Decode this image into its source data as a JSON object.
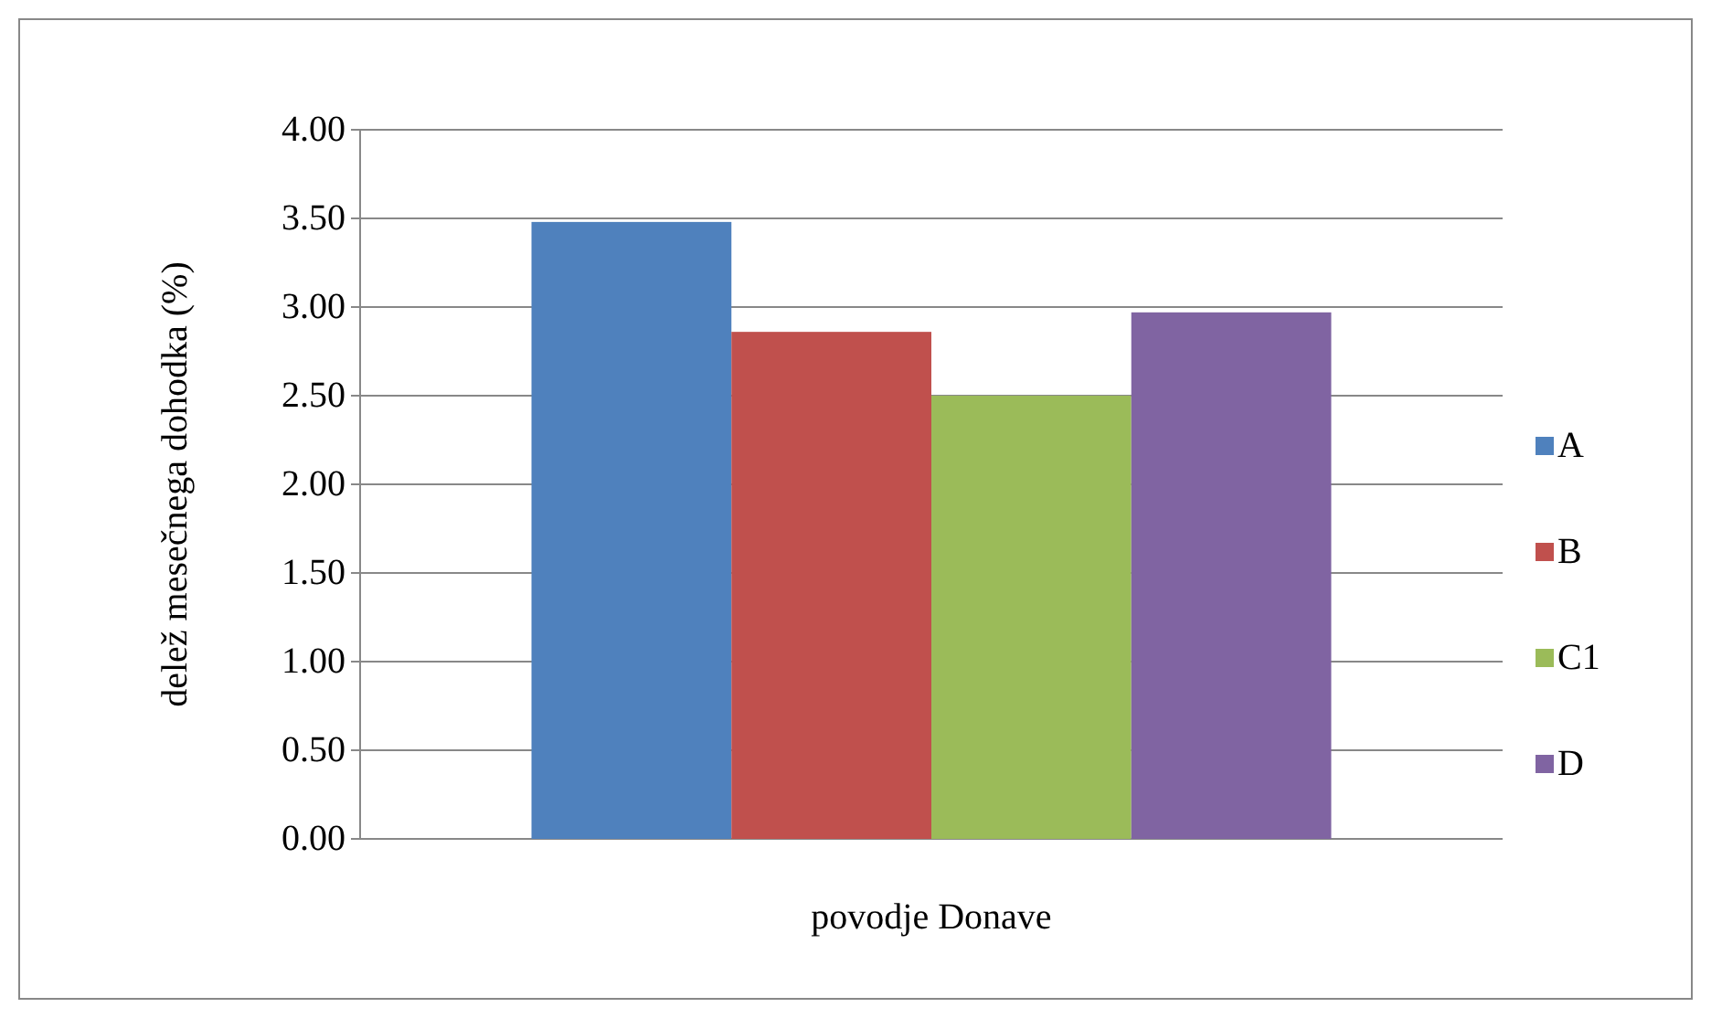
{
  "chart_data": {
    "type": "bar",
    "categories": [
      "povodje Donave"
    ],
    "ylabel": "delež mesečnega dohodka (%)",
    "series": [
      {
        "name": "A",
        "color": "#4f81bd",
        "values": [
          3.48
        ]
      },
      {
        "name": "B",
        "color": "#c0504d",
        "values": [
          2.86
        ]
      },
      {
        "name": "C1",
        "color": "#9bbb59",
        "values": [
          2.5
        ]
      },
      {
        "name": "D",
        "color": "#8064a2",
        "values": [
          2.97
        ]
      }
    ],
    "ylim": [
      0,
      4
    ],
    "yticks": [
      {
        "value": 0,
        "label": "0.00"
      },
      {
        "value": 0.5,
        "label": "0.50"
      },
      {
        "value": 1,
        "label": "1.00"
      },
      {
        "value": 1.5,
        "label": "1.50"
      },
      {
        "value": 2,
        "label": "2.00"
      },
      {
        "value": 2.5,
        "label": "2.50"
      },
      {
        "value": 3,
        "label": "3.00"
      },
      {
        "value": 3.5,
        "label": "3.50"
      },
      {
        "value": 4,
        "label": "4.00"
      }
    ],
    "grid": "y",
    "legend": "right"
  }
}
